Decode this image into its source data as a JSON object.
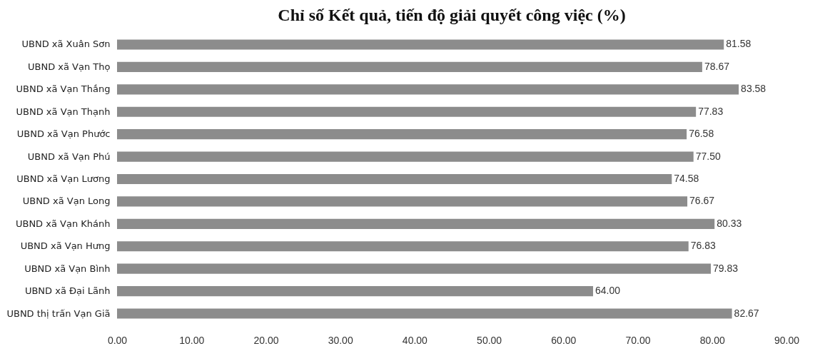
{
  "chart_data": {
    "type": "bar",
    "orientation": "horizontal",
    "title": "Chỉ số Kết quả, tiến độ giải quyết công việc (%)",
    "categories": [
      "UBND xã Xuân Sơn",
      "UBND xã Vạn Thọ",
      "UBND xã Vạn Thắng",
      "UBND xã Vạn Thạnh",
      "UBND xã Vạn Phước",
      "UBND xã Vạn Phú",
      "UBND xã Vạn Lương",
      "UBND xã Vạn Long",
      "UBND xã Vạn Khánh",
      "UBND xã Vạn Hưng",
      "UBND xã Vạn Bình",
      "UBND xã Đại Lãnh",
      "UBND thị trấn Vạn Giã"
    ],
    "values": [
      81.58,
      78.67,
      83.58,
      77.83,
      76.58,
      77.5,
      74.58,
      76.67,
      80.33,
      76.83,
      79.83,
      64.0,
      82.67
    ],
    "value_labels": [
      "81.58",
      "78.67",
      "83.58",
      "77.83",
      "76.58",
      "77.50",
      "74.58",
      "76.67",
      "80.33",
      "76.83",
      "79.83",
      "64.00",
      "82.67"
    ],
    "color": "#8c8c8c",
    "xlim": [
      0,
      90
    ],
    "xticks": [
      {
        "value": 0,
        "label": "0.00"
      },
      {
        "value": 10,
        "label": "10.00"
      },
      {
        "value": 20,
        "label": "20.00"
      },
      {
        "value": 30,
        "label": "30.00"
      },
      {
        "value": 40,
        "label": "40.00"
      },
      {
        "value": 50,
        "label": "50.00"
      },
      {
        "value": 60,
        "label": "60.00"
      },
      {
        "value": 70,
        "label": "70.00"
      },
      {
        "value": 80,
        "label": "80.00"
      },
      {
        "value": 90,
        "label": "90.00"
      }
    ],
    "grid": false
  }
}
